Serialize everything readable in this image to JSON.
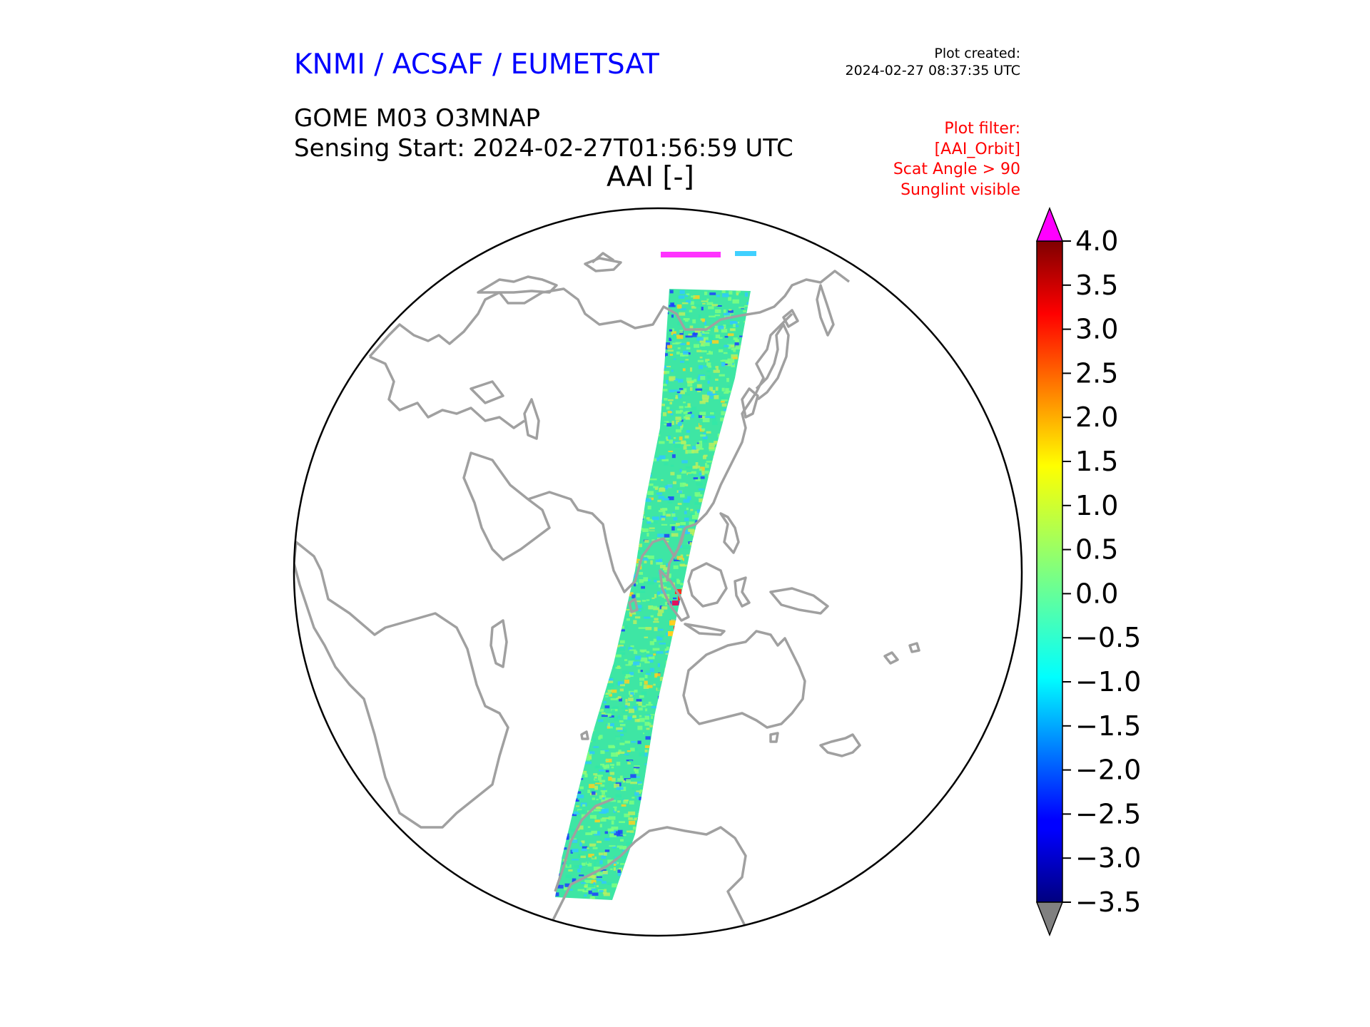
{
  "header": {
    "organization": "KNMI / ACSAF / EUMETSAT",
    "plot_created_label": "Plot created:",
    "plot_created_time": "2024-02-27 08:37:35 UTC",
    "product": "GOME M03 O3MNAP",
    "sensing_start": "Sensing Start: 2024-02-27T01:56:59 UTC",
    "variable": "AAI [-]"
  },
  "plot_filter": [
    "Plot filter:",
    "[AAI_Orbit]",
    "Scat Angle > 90",
    "Sunglint visible"
  ],
  "colorbar": {
    "min": -3.5,
    "max": 4.0,
    "ticks": [
      "4.0",
      "3.5",
      "3.0",
      "2.5",
      "2.0",
      "1.5",
      "1.0",
      "0.5",
      "0.0",
      "−0.5",
      "−1.0",
      "−1.5",
      "−2.0",
      "−2.5",
      "−3.0",
      "−3.5"
    ],
    "over_color": "#ff00ff",
    "under_color": "#808080",
    "colormap": "jet"
  },
  "map": {
    "projection": "orthographic",
    "coastline_color": "#a0a0a0",
    "swath_colors": [
      "#33e8a8",
      "#7fff7f",
      "#b8f060",
      "#30c8ff",
      "#1e40ff",
      "#ffd020",
      "#ff3020",
      "#e01060"
    ]
  }
}
